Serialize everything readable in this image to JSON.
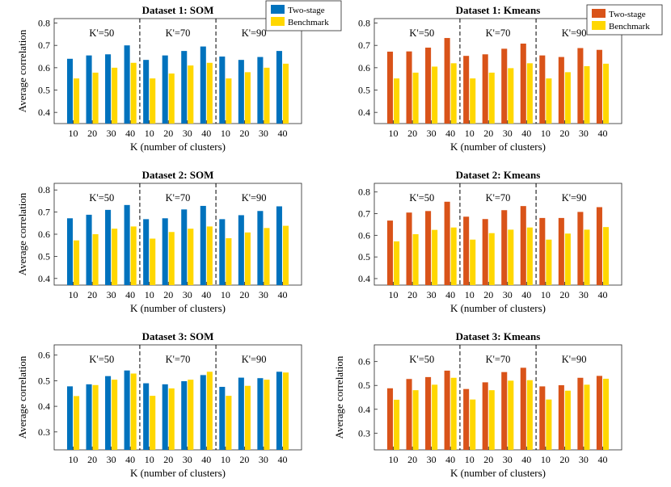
{
  "chart_data": [
    {
      "type": "bar",
      "title": "Dataset 1: SOM",
      "xlabel": "K (number of clusters)",
      "ylabel": "Average correlation",
      "ylim": [
        0.35,
        0.82
      ],
      "yticks": [
        "0.4",
        "0.5",
        "0.6",
        "0.7",
        "0.8"
      ],
      "categories": [
        "10",
        "20",
        "30",
        "40",
        "10",
        "20",
        "30",
        "40",
        "10",
        "20",
        "30",
        "40"
      ],
      "group_labels": [
        "K'=50",
        "K'=70",
        "K'=90"
      ],
      "series": [
        {
          "name": "Two-stage",
          "color": "#0072BD",
          "values": [
            0.64,
            0.655,
            0.66,
            0.7,
            0.635,
            0.655,
            0.675,
            0.695,
            0.65,
            0.635,
            0.648,
            0.675
          ]
        },
        {
          "name": "Benchmark",
          "color": "#FFD700",
          "values": [
            0.552,
            0.578,
            0.6,
            0.622,
            0.552,
            0.574,
            0.61,
            0.622,
            0.552,
            0.58,
            0.6,
            0.618
          ]
        }
      ],
      "legend": {
        "labels": [
          "Two-stage",
          "Benchmark"
        ],
        "location": "top-right"
      }
    },
    {
      "type": "bar",
      "title": "Dataset 1: Kmeans",
      "xlabel": "K (number of clusters)",
      "ylabel": "",
      "ylim": [
        0.35,
        0.82
      ],
      "yticks": [
        "0.4",
        "0.5",
        "0.6",
        "0.7",
        "0.8"
      ],
      "categories": [
        "10",
        "20",
        "30",
        "40",
        "10",
        "20",
        "30",
        "40",
        "10",
        "20",
        "30",
        "40"
      ],
      "group_labels": [
        "K'=50",
        "K'=70",
        "K'=90"
      ],
      "series": [
        {
          "name": "Two-stage",
          "color": "#D95319",
          "values": [
            0.672,
            0.673,
            0.69,
            0.733,
            0.653,
            0.66,
            0.685,
            0.708,
            0.655,
            0.648,
            0.688,
            0.68
          ]
        },
        {
          "name": "Benchmark",
          "color": "#FFD700",
          "values": [
            0.552,
            0.578,
            0.605,
            0.62,
            0.552,
            0.578,
            0.598,
            0.62,
            0.552,
            0.58,
            0.607,
            0.618
          ]
        }
      ],
      "legend": {
        "labels": [
          "Two-stage",
          "Benchmark"
        ],
        "location": "top-right"
      }
    },
    {
      "type": "bar",
      "title": "Dataset 2: SOM",
      "xlabel": "K (number of clusters)",
      "ylabel": "Average correlation",
      "ylim": [
        0.37,
        0.83
      ],
      "yticks": [
        "0.4",
        "0.5",
        "0.6",
        "0.7",
        "0.8"
      ],
      "categories": [
        "10",
        "20",
        "30",
        "40",
        "10",
        "20",
        "30",
        "40",
        "10",
        "20",
        "30",
        "40"
      ],
      "group_labels": [
        "K'=50",
        "K'=70",
        "K'=90"
      ],
      "series": [
        {
          "name": "Two-stage",
          "color": "#0072BD",
          "values": [
            0.672,
            0.688,
            0.71,
            0.732,
            0.668,
            0.672,
            0.712,
            0.728,
            0.668,
            0.686,
            0.705,
            0.726
          ]
        },
        {
          "name": "Benchmark",
          "color": "#FFD700",
          "values": [
            0.572,
            0.6,
            0.625,
            0.635,
            0.58,
            0.61,
            0.625,
            0.635,
            0.582,
            0.608,
            0.628,
            0.638
          ]
        }
      ]
    },
    {
      "type": "bar",
      "title": "Dataset 2: Kmeans",
      "xlabel": "K (number of clusters)",
      "ylabel": "",
      "ylim": [
        0.37,
        0.84
      ],
      "yticks": [
        "0.4",
        "0.5",
        "0.6",
        "0.7",
        "0.8"
      ],
      "categories": [
        "10",
        "20",
        "30",
        "40",
        "10",
        "20",
        "30",
        "40",
        "10",
        "20",
        "30",
        "40"
      ],
      "group_labels": [
        "K'=50",
        "K'=70",
        "K'=90"
      ],
      "series": [
        {
          "name": "Two-stage",
          "color": "#D95319",
          "values": [
            0.668,
            0.705,
            0.712,
            0.755,
            0.686,
            0.675,
            0.716,
            0.735,
            0.68,
            0.68,
            0.708,
            0.73
          ]
        },
        {
          "name": "Benchmark",
          "color": "#FFD700",
          "values": [
            0.572,
            0.605,
            0.625,
            0.636,
            0.58,
            0.61,
            0.626,
            0.636,
            0.58,
            0.608,
            0.626,
            0.638
          ]
        }
      ]
    },
    {
      "type": "bar",
      "title": "Dataset 3: SOM",
      "xlabel": "K (number of clusters)",
      "ylabel": "Average correlation",
      "ylim": [
        0.23,
        0.64
      ],
      "yticks": [
        "0.3",
        "0.4",
        "0.5",
        "0.6"
      ],
      "categories": [
        "10",
        "20",
        "30",
        "40",
        "10",
        "20",
        "30",
        "40",
        "10",
        "20",
        "30",
        "40"
      ],
      "group_labels": [
        "K'=50",
        "K'=70",
        "K'=90"
      ],
      "series": [
        {
          "name": "Two-stage",
          "color": "#0072BD",
          "values": [
            0.478,
            0.486,
            0.518,
            0.54,
            0.49,
            0.486,
            0.498,
            0.522,
            0.476,
            0.512,
            0.51,
            0.535
          ]
        },
        {
          "name": "Benchmark",
          "color": "#FFD700",
          "values": [
            0.44,
            0.483,
            0.504,
            0.528,
            0.441,
            0.47,
            0.504,
            0.535,
            0.441,
            0.48,
            0.504,
            0.532
          ]
        }
      ]
    },
    {
      "type": "bar",
      "title": "Dataset 3: Kmeans",
      "xlabel": "K (number of clusters)",
      "ylabel": "Average correlation",
      "ylim": [
        0.23,
        0.67
      ],
      "yticks": [
        "0.3",
        "0.4",
        "0.5",
        "0.6"
      ],
      "categories": [
        "10",
        "20",
        "30",
        "40",
        "10",
        "20",
        "30",
        "40",
        "10",
        "20",
        "30",
        "40"
      ],
      "group_labels": [
        "K'=50",
        "K'=70",
        "K'=90"
      ],
      "series": [
        {
          "name": "Two-stage",
          "color": "#D95319",
          "values": [
            0.488,
            0.527,
            0.535,
            0.562,
            0.485,
            0.513,
            0.556,
            0.574,
            0.496,
            0.501,
            0.532,
            0.54
          ]
        },
        {
          "name": "Benchmark",
          "color": "#FFD700",
          "values": [
            0.44,
            0.48,
            0.503,
            0.532,
            0.441,
            0.48,
            0.52,
            0.522,
            0.441,
            0.478,
            0.503,
            0.528
          ]
        }
      ]
    }
  ]
}
